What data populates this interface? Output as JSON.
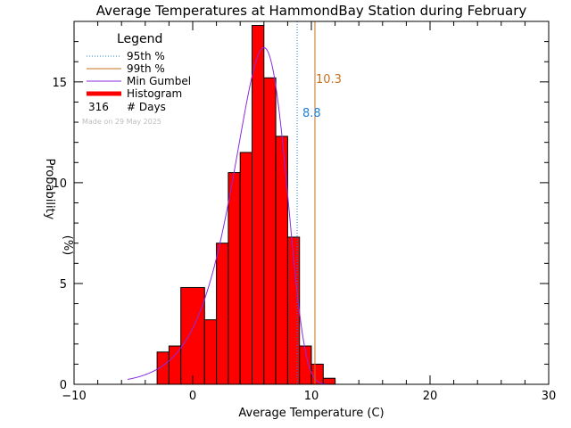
{
  "chart_data": {
    "type": "bar",
    "title": "Average Temperatures at HammondBay Station during February",
    "xlabel": "Average Temperature (C)",
    "ylabel": "Probability\n(%)",
    "xlim": [
      -10,
      30
    ],
    "ylim": [
      0,
      18
    ],
    "xticks": [
      -10,
      0,
      10,
      20,
      30
    ],
    "xtick_labels": [
      "−10",
      "0",
      "10",
      "20",
      "30"
    ],
    "yticks": [
      0,
      5,
      10,
      15
    ],
    "ytick_labels": [
      "0",
      "5",
      "10",
      "15"
    ],
    "histogram": {
      "name": "Histogram",
      "color": "#ff0000",
      "bins": [
        {
          "x0": -3.0,
          "x1": -2.0,
          "value": 1.6
        },
        {
          "x0": -2.0,
          "x1": -1.0,
          "value": 1.9
        },
        {
          "x0": -1.0,
          "x1": 1.0,
          "value": 4.8
        },
        {
          "x0": 1.0,
          "x1": 2.0,
          "value": 3.2
        },
        {
          "x0": 2.0,
          "x1": 3.0,
          "value": 7.0
        },
        {
          "x0": 3.0,
          "x1": 4.0,
          "value": 10.5
        },
        {
          "x0": 4.0,
          "x1": 5.0,
          "value": 11.5
        },
        {
          "x0": 5.0,
          "x1": 6.0,
          "value": 17.8
        },
        {
          "x0": 6.0,
          "x1": 7.0,
          "value": 15.2
        },
        {
          "x0": 7.0,
          "x1": 8.0,
          "value": 12.3
        },
        {
          "x0": 8.0,
          "x1": 9.0,
          "value": 7.3
        },
        {
          "x0": 9.0,
          "x1": 10.0,
          "value": 1.9
        },
        {
          "x0": 10.0,
          "x1": 11.0,
          "value": 1.0
        },
        {
          "x0": 11.0,
          "x1": 12.0,
          "value": 0.3
        }
      ]
    },
    "gumbel": {
      "name": "Min Gumbel",
      "color": "#8a2be2",
      "mu": 6.0,
      "beta": 2.2,
      "peak": 16.7,
      "x_range": [
        -5.5,
        12.0
      ]
    },
    "percentiles": [
      {
        "name": "95th %",
        "value": 8.8,
        "label": "8.8",
        "color": "#1e7fd8",
        "style": "dotted"
      },
      {
        "name": "99th %",
        "value": 10.3,
        "label": "10.3",
        "color": "#c8701e",
        "style": "solid"
      }
    ],
    "legend": {
      "title": "Legend",
      "position": "top-left",
      "entries": [
        {
          "label": "95th %",
          "kind": "dotted",
          "color": "#1e7fd8"
        },
        {
          "label": "99th %",
          "kind": "line",
          "color": "#c8701e"
        },
        {
          "label": "Min Gumbel",
          "kind": "line",
          "color": "#8a2be2"
        },
        {
          "label": "Histogram",
          "kind": "thick",
          "color": "#ff0000"
        }
      ],
      "days_count": "316",
      "days_label": "# Days"
    },
    "made_on": "Made on 29 May 2025"
  }
}
